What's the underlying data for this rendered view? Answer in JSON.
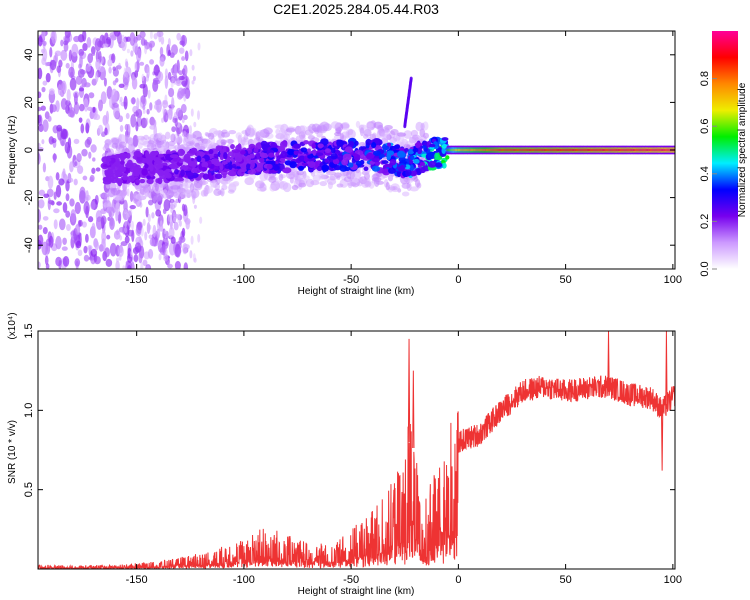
{
  "page_title": "C2E1.2025.284.05.44.R03",
  "colors": {
    "background": "#ffffff",
    "frame": "#000000",
    "snr_line": "#ee3333"
  },
  "chart_data": [
    {
      "type": "heatmap",
      "xlabel": "Height of straight line (km)",
      "ylabel": "Frequency (Hz)",
      "xlim": [
        -196,
        101
      ],
      "ylim": [
        -50,
        50
      ],
      "x_ticks": [
        {
          "value": -150,
          "label": "-150"
        },
        {
          "value": -100,
          "label": "-100"
        },
        {
          "value": -50,
          "label": "-50"
        },
        {
          "value": 0,
          "label": "0"
        },
        {
          "value": 50,
          "label": "50"
        },
        {
          "value": 100,
          "label": "100"
        }
      ],
      "y_ticks": [
        {
          "value": -40,
          "label": "-40"
        },
        {
          "value": -20,
          "label": "-20"
        },
        {
          "value": 0,
          "label": "0"
        },
        {
          "value": 20,
          "label": "20"
        },
        {
          "value": 40,
          "label": "40"
        }
      ],
      "colorbar": {
        "label": "Normalized spectral amplitude",
        "range": [
          0,
          1
        ],
        "ticks": [
          {
            "value": 0.0,
            "label": "0.0"
          },
          {
            "value": 0.2,
            "label": "0.2"
          },
          {
            "value": 0.4,
            "label": "0.4"
          },
          {
            "value": 0.6,
            "label": "0.6"
          },
          {
            "value": 0.8,
            "label": "0.8"
          }
        ],
        "colors": [
          "#ffffff",
          "#cc99ff",
          "#7700ee",
          "#0000ff",
          "#00eeff",
          "#00ee00",
          "#eeee00",
          "#ff8800",
          "#ff0000",
          "#ff0099"
        ]
      },
      "ridge_frequency": [
        {
          "h": -160,
          "f": -8
        },
        {
          "h": -140,
          "f": -7
        },
        {
          "h": -120,
          "f": -6
        },
        {
          "h": -100,
          "f": -4
        },
        {
          "h": -80,
          "f": -3
        },
        {
          "h": -60,
          "f": -2
        },
        {
          "h": -40,
          "f": -2
        },
        {
          "h": -30,
          "f": -4
        },
        {
          "h": -25,
          "f": -6
        },
        {
          "h": -18,
          "f": -3
        },
        {
          "h": -10,
          "f": -1
        },
        {
          "h": 0,
          "f": 0
        },
        {
          "h": 20,
          "f": 0
        },
        {
          "h": 100,
          "f": 0
        }
      ],
      "ridge_amplitude": [
        {
          "h": -160,
          "a": 0.2
        },
        {
          "h": -120,
          "a": 0.25
        },
        {
          "h": -80,
          "a": 0.3
        },
        {
          "h": -40,
          "a": 0.35
        },
        {
          "h": -20,
          "a": 0.4
        },
        {
          "h": -5,
          "a": 0.55
        },
        {
          "h": 0,
          "a": 0.7
        },
        {
          "h": 20,
          "a": 0.85
        },
        {
          "h": 100,
          "a": 0.95
        }
      ],
      "side_branch": {
        "h_start": -25,
        "h_end": -22,
        "f_start": 10,
        "f_end": 30
      }
    },
    {
      "type": "line",
      "xlabel": "Height of straight line (km)",
      "ylabel": "SNR (10 * v/v)",
      "y_scale_label": "(x10⁴)",
      "xlim": [
        -196,
        101
      ],
      "ylim": [
        0,
        1.5
      ],
      "x_ticks": [
        {
          "value": -150,
          "label": "-150"
        },
        {
          "value": -100,
          "label": "-100"
        },
        {
          "value": -50,
          "label": "-50"
        },
        {
          "value": 0,
          "label": "0"
        },
        {
          "value": 50,
          "label": "50"
        },
        {
          "value": 100,
          "label": "100"
        }
      ],
      "y_ticks": [
        {
          "value": 0.5,
          "label": "0.5"
        },
        {
          "value": 1.0,
          "label": "1.0"
        },
        {
          "value": 1.5,
          "label": "1.5"
        }
      ],
      "envelope": [
        {
          "h": -196,
          "snr": 0.02
        },
        {
          "h": -160,
          "snr": 0.02
        },
        {
          "h": -140,
          "snr": 0.04
        },
        {
          "h": -120,
          "snr": 0.08
        },
        {
          "h": -100,
          "snr": 0.15
        },
        {
          "h": -90,
          "snr": 0.22
        },
        {
          "h": -75,
          "snr": 0.15
        },
        {
          "h": -60,
          "snr": 0.12
        },
        {
          "h": -50,
          "snr": 0.2
        },
        {
          "h": -40,
          "snr": 0.3
        },
        {
          "h": -30,
          "snr": 0.45
        },
        {
          "h": -25,
          "snr": 0.6
        },
        {
          "h": -22,
          "snr": 0.9
        },
        {
          "h": -18,
          "snr": 0.35
        },
        {
          "h": -12,
          "snr": 0.45
        },
        {
          "h": -5,
          "snr": 0.75
        },
        {
          "h": 0,
          "snr": 0.8
        },
        {
          "h": 10,
          "snr": 0.85
        },
        {
          "h": 20,
          "snr": 1.0
        },
        {
          "h": 30,
          "snr": 1.12
        },
        {
          "h": 40,
          "snr": 1.15
        },
        {
          "h": 50,
          "snr": 1.12
        },
        {
          "h": 60,
          "snr": 1.14
        },
        {
          "h": 70,
          "snr": 1.15
        },
        {
          "h": 80,
          "snr": 1.1
        },
        {
          "h": 90,
          "snr": 1.08
        },
        {
          "h": 95,
          "snr": 1.0
        },
        {
          "h": 101,
          "snr": 1.1
        }
      ],
      "peaks": [
        {
          "h": -23,
          "snr": 1.45
        },
        {
          "h": -21,
          "snr": 1.25
        },
        {
          "h": 70,
          "snr": 1.5
        },
        {
          "h": 97,
          "snr": 1.5
        },
        {
          "h": 95,
          "snr": 0.62
        }
      ]
    }
  ]
}
